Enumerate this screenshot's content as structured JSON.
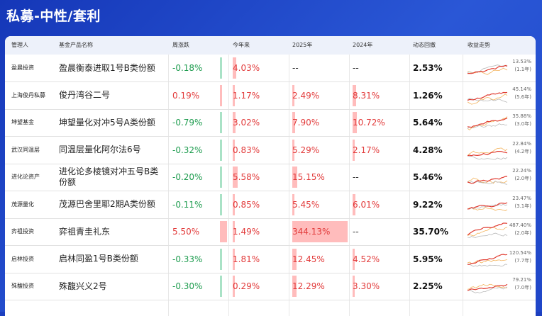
{
  "page": {
    "title": "私募-中性/套利"
  },
  "columns": {
    "manager": "管理人",
    "product": "基金产品名称",
    "weekly": "周涨跌",
    "ytd": "今年来",
    "y2025": "2025年",
    "y2024": "2024年",
    "drawdown": "动态回撤",
    "trend": "收益走势"
  },
  "colors": {
    "up": "#e23b3b",
    "down": "#1e9c4f",
    "header_bg": "#1c3fbf"
  },
  "rows": [
    {
      "manager": "盈晨投资",
      "product": "盈晨衡泰进取1号B类份额",
      "weekly": "-0.18%",
      "weekly_sign": "neg",
      "ytd": "4.03%",
      "y2025": "--",
      "y2024": "--",
      "drawdown": "2.53%",
      "trend_return": "13.53%",
      "trend_years": "(1.1年)"
    },
    {
      "manager": "上海俊丹私募",
      "product": "俊丹湾谷二号",
      "weekly": "0.19%",
      "weekly_sign": "pos",
      "ytd": "1.17%",
      "y2025": "2.49%",
      "y2024": "8.31%",
      "drawdown": "1.26%",
      "trend_return": "45.14%",
      "trend_years": "(5.6年)"
    },
    {
      "manager": "坤望基金",
      "product": "坤望量化对冲5号A类份额",
      "weekly": "-0.79%",
      "weekly_sign": "neg",
      "ytd": "3.02%",
      "y2025": "7.90%",
      "y2024": "10.72%",
      "drawdown": "5.64%",
      "trend_return": "35.88%",
      "trend_years": "(3.0年)"
    },
    {
      "manager": "武汉同温层",
      "product": "同温层量化阿尔法6号",
      "weekly": "-0.32%",
      "weekly_sign": "neg",
      "ytd": "0.83%",
      "y2025": "5.29%",
      "y2024": "2.17%",
      "drawdown": "4.28%",
      "trend_return": "22.84%",
      "trend_years": "(4.2年)"
    },
    {
      "manager": "进化论资产",
      "product": "进化论多棱镜对冲五号B类份额",
      "weekly": "-0.20%",
      "weekly_sign": "neg",
      "ytd": "5.58%",
      "y2025": "15.15%",
      "y2024": "--",
      "drawdown": "5.46%",
      "trend_return": "22.24%",
      "trend_years": "(2.0年)"
    },
    {
      "manager": "茂源量化",
      "product": "茂源巴舍里耶2期A类份额",
      "weekly": "-0.11%",
      "weekly_sign": "neg",
      "ytd": "0.85%",
      "y2025": "5.45%",
      "y2024": "6.01%",
      "drawdown": "9.22%",
      "trend_return": "23.47%",
      "trend_years": "(3.1年)"
    },
    {
      "manager": "弈祖投资",
      "product": "弈祖青圭礼东",
      "weekly": "5.50%",
      "weekly_sign": "pos",
      "ytd": "1.49%",
      "y2025": "344.13%",
      "y2024": "--",
      "drawdown": "35.70%",
      "trend_return": "487.40%",
      "trend_years": "(2.0年)"
    },
    {
      "manager": "启林投资",
      "product": "启林同盈1号B类份额",
      "weekly": "-0.33%",
      "weekly_sign": "neg",
      "ytd": "1.81%",
      "y2025": "12.45%",
      "y2024": "4.52%",
      "drawdown": "5.95%",
      "trend_return": "120.54%",
      "trend_years": "(7.7年)"
    },
    {
      "manager": "殊馥投资",
      "product": "殊馥兴义2号",
      "weekly": "-0.30%",
      "weekly_sign": "neg",
      "ytd": "0.29%",
      "y2025": "12.29%",
      "y2024": "3.30%",
      "drawdown": "2.25%",
      "trend_return": "79.21%",
      "trend_years": "(7.0年)"
    }
  ]
}
